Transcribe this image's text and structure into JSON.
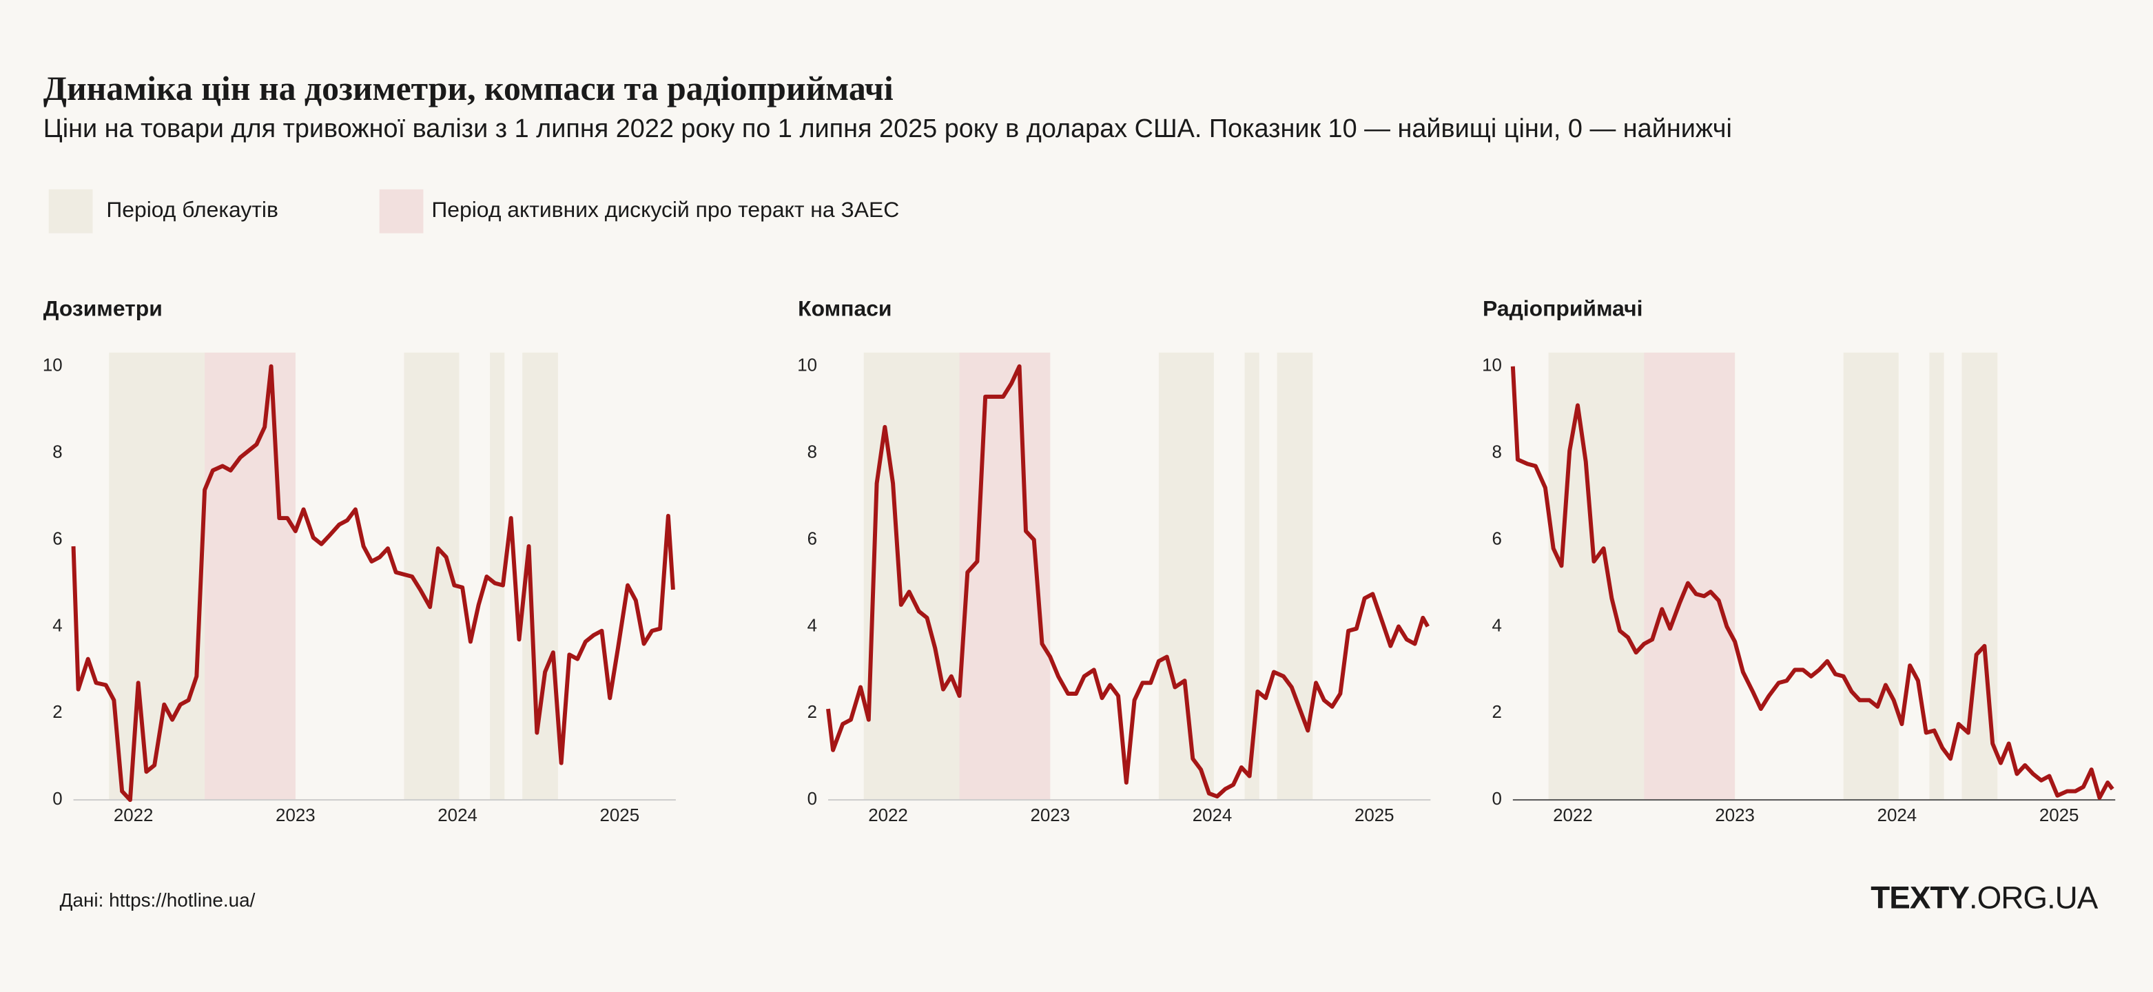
{
  "title": "Динаміка цін на дозиметри, компаси та радіоприймачі",
  "subtitle": "Ціни на товари для тривожної валізи з 1 липня 2022 року по 1 липня 2025 року в доларах США. Показник 10 — найвищі ціни, 0 — найнижчі",
  "periods": [
    {
      "name": "Період  блекаутів",
      "color": "#efece2",
      "ranges": [
        [
          2021.85,
          2023.0
        ],
        [
          2023.67,
          2024.01
        ],
        [
          2024.2,
          2024.29
        ],
        [
          2024.4,
          2024.62
        ]
      ]
    },
    {
      "name": "Період активних дискусій про теракт на ЗАЕС",
      "color": "#f2e0de",
      "ranges": [
        [
          2022.44,
          2023.0
        ]
      ]
    }
  ],
  "source": "Дані: https://hotline.ua/",
  "logo": {
    "bold": "TEXTY",
    "rest": ".ORG.UA"
  },
  "chart_data": [
    {
      "type": "line",
      "title": "Дозиметри",
      "color": "#a51616",
      "x": [
        2021.63,
        2021.66,
        2021.72,
        2021.77,
        2021.83,
        2021.88,
        2021.93,
        2021.98,
        2022.03,
        2022.08,
        2022.13,
        2022.19,
        2022.24,
        2022.29,
        2022.34,
        2022.39,
        2022.44,
        2022.49,
        2022.55,
        2022.6,
        2022.66,
        2022.71,
        2022.76,
        2022.81,
        2022.85,
        2022.9,
        2022.95,
        2023.0,
        2023.05,
        2023.11,
        2023.16,
        2023.21,
        2023.27,
        2023.32,
        2023.37,
        2023.42,
        2023.47,
        2023.52,
        2023.57,
        2023.62,
        2023.67,
        2023.72,
        2023.77,
        2023.83,
        2023.88,
        2023.93,
        2023.98,
        2024.03,
        2024.08,
        2024.13,
        2024.18,
        2024.23,
        2024.28,
        2024.33,
        2024.38,
        2024.44,
        2024.49,
        2024.54,
        2024.59,
        2024.64,
        2024.69,
        2024.74,
        2024.79,
        2024.84,
        2024.89,
        2024.94,
        2024.99,
        2025.05,
        2025.1,
        2025.15,
        2025.2,
        2025.25,
        2025.3,
        2025.33
      ],
      "values": [
        5.85,
        2.55,
        3.25,
        2.7,
        2.65,
        2.3,
        0.2,
        0,
        2.7,
        0.65,
        0.8,
        2.2,
        1.85,
        2.2,
        2.3,
        2.85,
        7.15,
        7.6,
        7.7,
        7.6,
        7.9,
        8.05,
        8.2,
        8.6,
        10,
        6.5,
        6.5,
        6.2,
        6.7,
        6.05,
        5.9,
        6.1,
        6.35,
        6.45,
        6.7,
        5.85,
        5.5,
        5.6,
        5.8,
        5.25,
        5.2,
        5.15,
        4.85,
        4.45,
        5.8,
        5.6,
        4.95,
        4.9,
        3.65,
        4.5,
        5.15,
        5.0,
        4.95,
        6.5,
        3.7,
        5.85,
        1.55,
        2.95,
        3.4,
        0.85,
        3.35,
        3.25,
        3.65,
        3.8,
        3.9,
        2.35,
        3.5,
        4.95,
        4.6,
        3.6,
        3.9,
        3.95,
        6.55,
        4.85
      ],
      "xlim": [
        2021.63,
        2025.33
      ],
      "ylim": [
        0,
        10
      ],
      "xticks": [
        2022,
        2023,
        2024,
        2025
      ],
      "yticks": [
        0,
        2,
        4,
        6,
        8,
        10
      ]
    },
    {
      "type": "line",
      "title": "Компаси",
      "color": "#a51616",
      "x": [
        2021.63,
        2021.66,
        2021.72,
        2021.77,
        2021.83,
        2021.88,
        2021.93,
        2021.98,
        2022.03,
        2022.08,
        2022.13,
        2022.19,
        2022.24,
        2022.29,
        2022.34,
        2022.39,
        2022.44,
        2022.49,
        2022.55,
        2022.6,
        2022.66,
        2022.71,
        2022.76,
        2022.81,
        2022.85,
        2022.9,
        2022.95,
        2023.0,
        2023.05,
        2023.11,
        2023.16,
        2023.21,
        2023.27,
        2023.32,
        2023.37,
        2023.42,
        2023.47,
        2023.52,
        2023.57,
        2023.62,
        2023.67,
        2023.72,
        2023.77,
        2023.83,
        2023.88,
        2023.93,
        2023.98,
        2024.03,
        2024.08,
        2024.13,
        2024.18,
        2024.23,
        2024.28,
        2024.33,
        2024.38,
        2024.44,
        2024.49,
        2024.54,
        2024.59,
        2024.64,
        2024.69,
        2024.74,
        2024.79,
        2024.84,
        2024.89,
        2024.94,
        2024.99,
        2025.05,
        2025.1,
        2025.15,
        2025.2,
        2025.25,
        2025.3,
        2025.33
      ],
      "values": [
        2.1,
        1.15,
        1.75,
        1.85,
        2.6,
        1.85,
        7.3,
        8.6,
        7.3,
        4.5,
        4.8,
        4.35,
        4.2,
        3.5,
        2.55,
        2.85,
        2.4,
        5.25,
        5.5,
        9.3,
        9.3,
        9.3,
        9.6,
        10,
        6.2,
        6.0,
        3.6,
        3.3,
        2.85,
        2.45,
        2.45,
        2.85,
        3.0,
        2.35,
        2.65,
        2.4,
        0.4,
        2.3,
        2.7,
        2.7,
        3.2,
        3.3,
        2.6,
        2.75,
        0.95,
        0.7,
        0.15,
        0.08,
        0.25,
        0.35,
        0.75,
        0.55,
        2.5,
        2.35,
        2.95,
        2.85,
        2.6,
        2.1,
        1.6,
        2.7,
        2.3,
        2.15,
        2.45,
        3.9,
        3.95,
        4.65,
        4.75,
        4.1,
        3.55,
        4.0,
        3.7,
        3.6,
        4.2,
        4.0
      ],
      "xlim": [
        2021.63,
        2025.33
      ],
      "ylim": [
        0,
        10
      ],
      "xticks": [
        2022,
        2023,
        2024,
        2025
      ],
      "yticks": [
        0,
        2,
        4,
        6,
        8,
        10
      ]
    },
    {
      "type": "line",
      "title": "Радіоприймачі",
      "color": "#a51616",
      "x": [
        2021.63,
        2021.66,
        2021.72,
        2021.77,
        2021.83,
        2021.88,
        2021.93,
        2021.98,
        2022.03,
        2022.08,
        2022.13,
        2022.19,
        2022.24,
        2022.29,
        2022.34,
        2022.39,
        2022.44,
        2022.49,
        2022.55,
        2022.6,
        2022.66,
        2022.71,
        2022.76,
        2022.81,
        2022.85,
        2022.9,
        2022.95,
        2023.0,
        2023.05,
        2023.11,
        2023.16,
        2023.21,
        2023.27,
        2023.32,
        2023.37,
        2023.42,
        2023.47,
        2023.52,
        2023.57,
        2023.62,
        2023.67,
        2023.72,
        2023.77,
        2023.83,
        2023.88,
        2023.93,
        2023.98,
        2024.03,
        2024.08,
        2024.13,
        2024.18,
        2024.23,
        2024.28,
        2024.33,
        2024.38,
        2024.44,
        2024.49,
        2024.54,
        2024.59,
        2024.64,
        2024.69,
        2024.74,
        2024.79,
        2024.84,
        2024.89,
        2024.94,
        2024.99,
        2025.05,
        2025.1,
        2025.15,
        2025.2,
        2025.25,
        2025.3,
        2025.33
      ],
      "values": [
        10,
        7.85,
        7.75,
        7.7,
        7.2,
        5.8,
        5.4,
        8.05,
        9.1,
        7.8,
        5.5,
        5.8,
        4.65,
        3.9,
        3.75,
        3.4,
        3.6,
        3.7,
        4.4,
        3.95,
        4.55,
        5.0,
        4.75,
        4.7,
        4.8,
        4.6,
        4.0,
        3.65,
        2.95,
        2.5,
        2.1,
        2.4,
        2.7,
        2.75,
        3.0,
        3.0,
        2.85,
        3.0,
        3.2,
        2.9,
        2.85,
        2.5,
        2.3,
        2.3,
        2.15,
        2.65,
        2.3,
        1.75,
        3.1,
        2.75,
        1.55,
        1.6,
        1.2,
        0.95,
        1.75,
        1.55,
        3.35,
        3.55,
        1.3,
        0.85,
        1.3,
        0.6,
        0.8,
        0.6,
        0.45,
        0.55,
        0.1,
        0.2,
        0.2,
        0.3,
        0.7,
        0.05,
        0.4,
        0.25
      ],
      "xlim": [
        2021.63,
        2025.33
      ],
      "ylim": [
        0,
        10
      ],
      "xticks": [
        2022,
        2023,
        2024,
        2025
      ],
      "yticks": [
        0,
        2,
        4,
        6,
        8,
        10
      ]
    }
  ]
}
